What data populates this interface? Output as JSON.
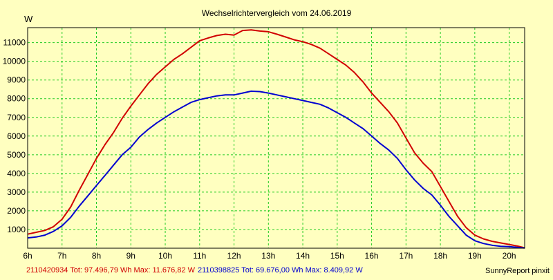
{
  "chart_data": {
    "type": "line",
    "title": "Wechselrichtervergleich vom 24.06.2019",
    "ylabel": "W",
    "xlabel": "",
    "xlim": [
      6.0,
      20.45
    ],
    "ylim": [
      0,
      11800
    ],
    "x_ticks": [
      6,
      7,
      8,
      9,
      10,
      11,
      12,
      13,
      14,
      15,
      16,
      17,
      18,
      19,
      20
    ],
    "x_tick_labels": [
      "6h",
      "7h",
      "8h",
      "9h",
      "10h",
      "11h",
      "12h",
      "13h",
      "14h",
      "15h",
      "16h",
      "17h",
      "18h",
      "19h",
      "20h"
    ],
    "y_ticks": [
      1000,
      2000,
      3000,
      4000,
      5000,
      6000,
      7000,
      8000,
      9000,
      10000,
      11000
    ],
    "y_tick_labels": [
      "1000",
      "2000",
      "3000",
      "4000",
      "5000",
      "6000",
      "7000",
      "8000",
      "9000",
      "10000",
      "11000"
    ],
    "grid": true,
    "footer_credit": "SunnyReport pinxit",
    "series": [
      {
        "name": "2110420934",
        "legend": "2110420934 Tot: 97.496,79 Wh Max: 11.676,82 W",
        "color": "#d00000",
        "x": [
          6.0,
          6.25,
          6.5,
          6.75,
          7.0,
          7.25,
          7.5,
          7.75,
          8.0,
          8.25,
          8.5,
          8.75,
          9.0,
          9.25,
          9.5,
          9.75,
          10.0,
          10.25,
          10.5,
          10.75,
          11.0,
          11.25,
          11.5,
          11.75,
          12.0,
          12.25,
          12.5,
          12.75,
          13.0,
          13.25,
          13.5,
          13.75,
          14.0,
          14.25,
          14.5,
          14.75,
          15.0,
          15.25,
          15.5,
          15.75,
          16.0,
          16.25,
          16.5,
          16.75,
          17.0,
          17.25,
          17.5,
          17.75,
          18.0,
          18.25,
          18.5,
          18.75,
          19.0,
          19.25,
          19.5,
          19.75,
          20.0,
          20.25,
          20.45
        ],
        "values": [
          750,
          850,
          950,
          1150,
          1550,
          2200,
          3100,
          3950,
          4800,
          5550,
          6200,
          6950,
          7600,
          8200,
          8800,
          9300,
          9700,
          10100,
          10400,
          10750,
          11100,
          11250,
          11380,
          11450,
          11400,
          11650,
          11680,
          11620,
          11580,
          11450,
          11300,
          11150,
          11050,
          10900,
          10700,
          10400,
          10100,
          9800,
          9400,
          8900,
          8300,
          7800,
          7300,
          6700,
          5900,
          5100,
          4550,
          4100,
          3300,
          2500,
          1700,
          1100,
          700,
          500,
          370,
          280,
          200,
          110,
          20
        ]
      },
      {
        "name": "2110398825",
        "legend": "2110398825 Tot: 69.676,00 Wh Max: 8.409,92 W",
        "color": "#0000d0",
        "x": [
          6.0,
          6.25,
          6.5,
          6.75,
          7.0,
          7.25,
          7.5,
          7.75,
          8.0,
          8.25,
          8.5,
          8.75,
          9.0,
          9.25,
          9.5,
          9.75,
          10.0,
          10.25,
          10.5,
          10.75,
          11.0,
          11.25,
          11.5,
          11.75,
          12.0,
          12.25,
          12.5,
          12.75,
          13.0,
          13.25,
          13.5,
          13.75,
          14.0,
          14.25,
          14.5,
          14.75,
          15.0,
          15.25,
          15.5,
          15.75,
          16.0,
          16.25,
          16.5,
          16.75,
          17.0,
          17.25,
          17.5,
          17.75,
          18.0,
          18.25,
          18.5,
          18.75,
          19.0,
          19.25,
          19.5,
          19.75,
          20.0,
          20.25,
          20.45
        ],
        "values": [
          550,
          600,
          700,
          900,
          1200,
          1650,
          2250,
          2800,
          3350,
          3900,
          4450,
          5000,
          5400,
          5950,
          6350,
          6700,
          7000,
          7300,
          7550,
          7800,
          7950,
          8050,
          8150,
          8200,
          8200,
          8300,
          8400,
          8380,
          8300,
          8200,
          8100,
          8000,
          7900,
          7800,
          7700,
          7500,
          7250,
          7000,
          6700,
          6400,
          6000,
          5600,
          5250,
          4800,
          4200,
          3650,
          3200,
          2850,
          2300,
          1700,
          1200,
          700,
          400,
          250,
          160,
          100,
          80,
          40,
          10
        ]
      }
    ]
  }
}
